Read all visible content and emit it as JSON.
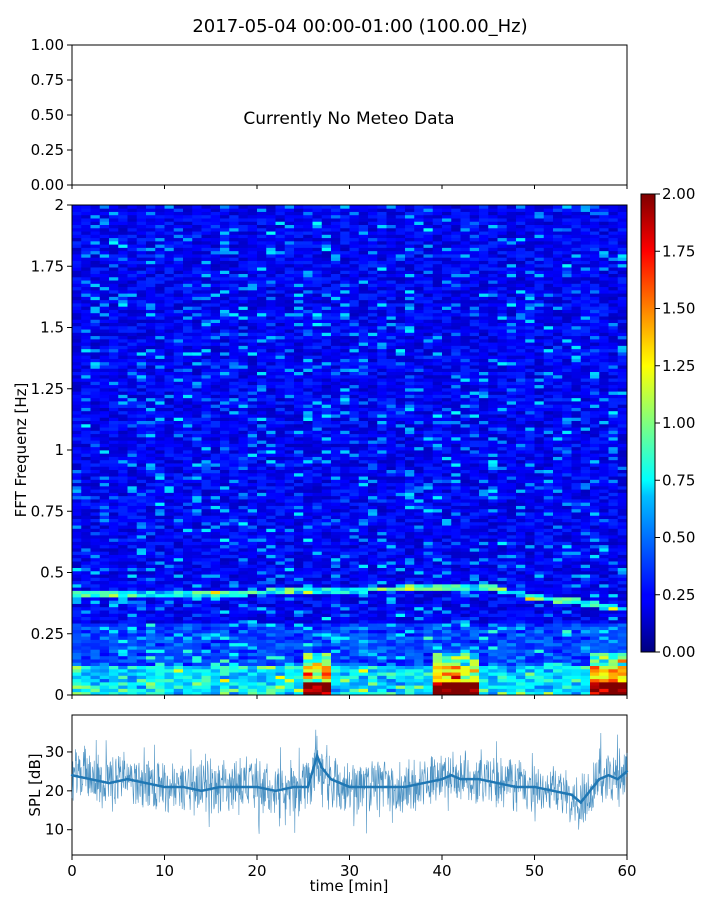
{
  "title": "2017-05-04 00:00-01:00 (100.00_Hz)",
  "meteo_panel": {
    "message": "Currently No Meteo Data",
    "yticks": [
      "0.00",
      "0.25",
      "0.50",
      "0.75",
      "1.00"
    ]
  },
  "chart_data": [
    {
      "type": "heatmap",
      "ylabel": "FFT Frequenz [Hz]",
      "ylim": [
        0,
        2
      ],
      "xlim": [
        0,
        60
      ],
      "yticks": [
        "0",
        "0.25",
        "0.5",
        "0.75",
        "1",
        "1.25",
        "1.5",
        "1.75",
        "2"
      ],
      "colormap": "jet",
      "colorbar": {
        "range": [
          0,
          2
        ],
        "ticks": [
          "0.00",
          "0.25",
          "0.50",
          "0.75",
          "1.00",
          "1.25",
          "1.50",
          "1.75",
          "2.00"
        ]
      },
      "dominant_band_hz": [
        {
          "time_min": 0,
          "freq": 0.41
        },
        {
          "time_min": 10,
          "freq": 0.41
        },
        {
          "time_min": 20,
          "freq": 0.42
        },
        {
          "time_min": 30,
          "freq": 0.43
        },
        {
          "time_min": 40,
          "freq": 0.44
        },
        {
          "time_min": 45,
          "freq": 0.44
        },
        {
          "time_min": 50,
          "freq": 0.4
        },
        {
          "time_min": 55,
          "freq": 0.38
        },
        {
          "time_min": 60,
          "freq": 0.35
        }
      ]
    },
    {
      "type": "line",
      "xlabel": "time [min]",
      "ylabel": "SPL [dB]",
      "xlim": [
        0,
        60
      ],
      "ylim": [
        3.5,
        39.5
      ],
      "xticks": [
        "0",
        "10",
        "20",
        "30",
        "40",
        "50",
        "60"
      ],
      "yticks": [
        "10",
        "20",
        "30"
      ],
      "color": "#1f77b4",
      "series": [
        {
          "x": [
            0,
            2,
            4,
            6,
            8,
            10,
            12,
            14,
            16,
            18,
            20,
            22,
            24,
            25.5,
            26.5,
            27,
            28,
            30,
            32,
            34,
            36,
            38,
            40,
            41,
            42,
            44,
            46,
            48,
            50,
            52,
            54,
            55,
            56,
            57,
            58,
            59,
            60
          ],
          "values": [
            24,
            23,
            22,
            23,
            22,
            21,
            21,
            20,
            21,
            21,
            21,
            20,
            21,
            21,
            29,
            26,
            23,
            21,
            21,
            21,
            21,
            22,
            23,
            24,
            23,
            23,
            22,
            21,
            21,
            20,
            19,
            17,
            20,
            23,
            24,
            23,
            25
          ]
        }
      ]
    }
  ]
}
